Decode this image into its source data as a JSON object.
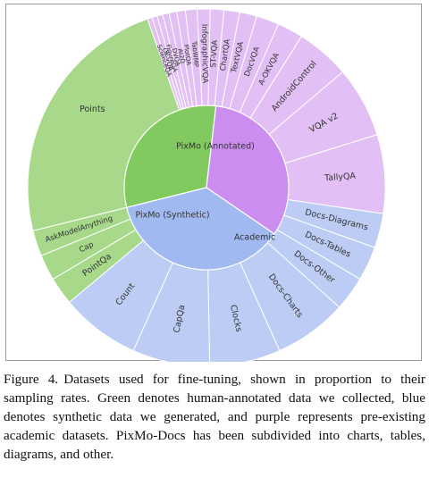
{
  "chart_data": {
    "type": "sunburst",
    "inner_ring": [
      {
        "name": "PixMo (Annotated)",
        "value": 7.9,
        "color": "#82c960"
      },
      {
        "name": "Academic",
        "value": 8.4,
        "color": "#cb8ef0"
      },
      {
        "name": "PixMo (Synthetic)",
        "value": 9.4,
        "color": "#a0b9f1"
      }
    ],
    "outer_ring": [
      {
        "name": "Points",
        "parent": "PixMo (Annotated)",
        "value": 6.05,
        "color": "#a8d98b"
      },
      {
        "name": "ScienceQA",
        "parent": "Academic",
        "value": 0.11,
        "color": "#e2c0f5"
      },
      {
        "name": "OK-VQA",
        "parent": "Academic",
        "value": 0.12,
        "color": "#e2c0f5"
      },
      {
        "name": "FigureQA",
        "parent": "Academic",
        "value": 0.13,
        "color": "#e2c0f5"
      },
      {
        "name": "DVQA",
        "parent": "Academic",
        "value": 0.15,
        "color": "#e2c0f5"
      },
      {
        "name": "AI2D",
        "parent": "Academic",
        "value": 0.18,
        "color": "#e2c0f5"
      },
      {
        "name": "PlotQA",
        "parent": "Academic",
        "value": 0.2,
        "color": "#e2c0f5"
      },
      {
        "name": "TabWMP",
        "parent": "Academic",
        "value": 0.27,
        "color": "#e2c0f5"
      },
      {
        "name": "InfographicVQA",
        "parent": "Academic",
        "value": 0.3,
        "color": "#e2c0f5"
      },
      {
        "name": "ST-VQA",
        "parent": "Academic",
        "value": 0.32,
        "color": "#e2c0f5"
      },
      {
        "name": "ChartQA",
        "parent": "Academic",
        "value": 0.36,
        "color": "#e2c0f5"
      },
      {
        "name": "TextVQA",
        "parent": "Academic",
        "value": 0.4,
        "color": "#e2c0f5"
      },
      {
        "name": "DocVQA",
        "parent": "Academic",
        "value": 0.53,
        "color": "#e2c0f5"
      },
      {
        "name": "A-OKVQA",
        "parent": "Academic",
        "value": 0.6,
        "color": "#e2c0f5"
      },
      {
        "name": "AndroidControl",
        "parent": "Academic",
        "value": 1.25,
        "color": "#e2c0f5"
      },
      {
        "name": "VQA v2",
        "parent": "Academic",
        "value": 1.65,
        "color": "#e2c0f5"
      },
      {
        "name": "TallyQA",
        "parent": "Academic",
        "value": 1.83,
        "color": "#e2c0f5"
      },
      {
        "name": "Docs-Diagrams",
        "parent": "PixMo (Synthetic)",
        "value": 0.8,
        "color": "#bcccf5"
      },
      {
        "name": "Docs-Tables",
        "parent": "PixMo (Synthetic)",
        "value": 0.8,
        "color": "#bcccf5"
      },
      {
        "name": "Docs-Other",
        "parent": "PixMo (Synthetic)",
        "value": 0.8,
        "color": "#bcccf5"
      },
      {
        "name": "Docs-Charts",
        "parent": "PixMo (Synthetic)",
        "value": 1.7,
        "color": "#bcccf5"
      },
      {
        "name": "Clocks",
        "parent": "PixMo (Synthetic)",
        "value": 1.65,
        "color": "#bcccf5"
      },
      {
        "name": "CapQa",
        "parent": "PixMo (Synthetic)",
        "value": 1.8,
        "color": "#bcccf5"
      },
      {
        "name": "Count",
        "parent": "PixMo (Synthetic)",
        "value": 1.85,
        "color": "#bcccf5"
      },
      {
        "name": "PointQa",
        "parent": "PixMo (Annotated)",
        "value": 0.65,
        "color": "#a8d98b"
      },
      {
        "name": "Cap",
        "parent": "PixMo (Annotated)",
        "value": 0.6,
        "color": "#a8d98b"
      },
      {
        "name": "AskModelAnything",
        "parent": "PixMo (Annotated)",
        "value": 0.6,
        "color": "#a8d98b"
      }
    ]
  },
  "caption": {
    "label": "Figure 4.",
    "text": "Datasets used for fine-tuning, shown in proportion to their sampling rates. Green denotes human-annotated data we collected, blue denotes synthetic data we generated, and purple represents pre-existing academic datasets. PixMo-Docs has been subdivided into charts, tables, diagrams, and other."
  }
}
